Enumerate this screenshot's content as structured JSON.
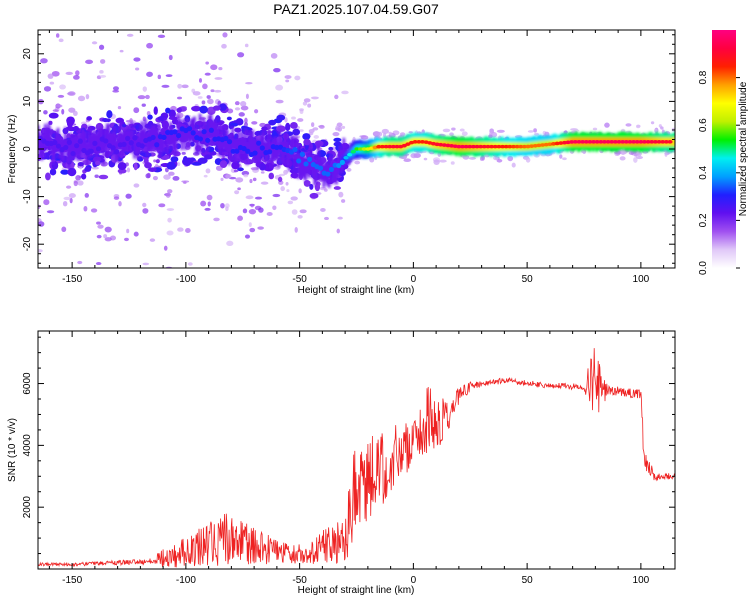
{
  "title": "PAZ1.2025.107.04.59.G07",
  "colors": {
    "snr_line": "#ee2222"
  },
  "chart_data": [
    {
      "type": "heatmap",
      "title": "PAZ1.2025.107.04.59.G07",
      "xlabel": "Height of straight line (km)",
      "ylabel": "Frequency (Hz)",
      "xlim": [
        -165,
        115
      ],
      "ylim": [
        -25,
        25
      ],
      "xticks": [
        -150,
        -100,
        -50,
        0,
        50,
        100
      ],
      "yticks": [
        -20,
        -10,
        0,
        10,
        20
      ],
      "colorbar": {
        "label": "Normalized spectral amplitude",
        "range": [
          0,
          1
        ],
        "ticks": [
          "0.0",
          "0.2",
          "0.4",
          "0.6",
          "0.8"
        ],
        "colormap": [
          "#ffffff",
          "#e0c8f8",
          "#a050f0",
          "#6010f0",
          "#2020ff",
          "#00a0ff",
          "#00f0f0",
          "#00f000",
          "#c0f000",
          "#ffff00",
          "#ffa000",
          "#ff2000",
          "#ff0040",
          "#ff0080"
        ]
      },
      "ridge": {
        "heights": [
          -160,
          -150,
          -140,
          -130,
          -120,
          -110,
          -100,
          -90,
          -80,
          -70,
          -60,
          -50,
          -45,
          -40,
          -35,
          -30,
          -25,
          -20,
          -15,
          -10,
          -5,
          0,
          5,
          10,
          20,
          30,
          40,
          50,
          60,
          70,
          80,
          90,
          100,
          110,
          115
        ],
        "frequency": [
          1,
          0,
          1,
          1,
          2,
          2,
          3,
          3,
          1,
          0,
          0,
          -2,
          -3,
          -4,
          -4,
          -2,
          0,
          0,
          0.5,
          0.5,
          0.5,
          1.5,
          1.5,
          1,
          0.5,
          0.5,
          0.5,
          0.5,
          1,
          1.5,
          1.5,
          1.5,
          1.5,
          1.5,
          1.5
        ],
        "amplitude": [
          0.25,
          0.25,
          0.25,
          0.25,
          0.25,
          0.3,
          0.3,
          0.3,
          0.3,
          0.3,
          0.3,
          0.35,
          0.35,
          0.35,
          0.35,
          0.4,
          0.55,
          0.65,
          0.85,
          0.9,
          0.9,
          0.85,
          0.85,
          0.9,
          0.95,
          0.9,
          0.85,
          0.8,
          0.8,
          0.95,
          0.95,
          0.95,
          0.95,
          0.9,
          0.9
        ]
      }
    },
    {
      "type": "line",
      "xlabel": "Height of straight line (km)",
      "ylabel": "SNR (10 * v/v)",
      "xlim": [
        -165,
        115
      ],
      "ylim": [
        0,
        7700
      ],
      "xticks": [
        -150,
        -100,
        -50,
        0,
        50,
        100
      ],
      "yticks": [
        2000,
        4000,
        6000
      ],
      "series": [
        {
          "x": [
            -165,
            -150,
            -130,
            -115,
            -110,
            -105,
            -100,
            -95,
            -90,
            -85,
            -80,
            -75,
            -70,
            -65,
            -60,
            -55,
            -50,
            -45,
            -40,
            -35,
            -30,
            -28,
            -26,
            -24,
            -22,
            -20,
            -17,
            -15,
            -12,
            -10,
            -8,
            -6,
            -4,
            -2,
            0,
            2,
            4,
            6,
            8,
            10,
            15,
            20,
            25,
            30,
            35,
            40,
            50,
            60,
            70,
            75,
            78,
            80,
            82,
            85,
            90,
            95,
            100,
            101,
            102,
            104,
            106,
            110,
            115
          ],
          "values": [
            150,
            150,
            200,
            250,
            350,
            450,
            550,
            700,
            800,
            900,
            1000,
            850,
            750,
            650,
            600,
            500,
            500,
            550,
            700,
            800,
            900,
            1800,
            2400,
            2700,
            2800,
            3000,
            3200,
            3100,
            3300,
            3400,
            3700,
            3900,
            3800,
            4000,
            4300,
            4200,
            4600,
            4800,
            4800,
            4500,
            5000,
            5600,
            5900,
            6000,
            6050,
            6100,
            6000,
            5950,
            5900,
            5900,
            6000,
            5900,
            5700,
            5800,
            5750,
            5700,
            5650,
            4200,
            3600,
            3300,
            3000,
            3000,
            3000
          ],
          "noise": [
            50,
            50,
            80,
            100,
            300,
            400,
            500,
            600,
            700,
            800,
            900,
            700,
            600,
            500,
            400,
            350,
            350,
            400,
            550,
            700,
            800,
            1400,
            1600,
            1600,
            1500,
            1400,
            1400,
            1300,
            1200,
            1100,
            1000,
            1000,
            900,
            800,
            700,
            700,
            1000,
            1200,
            1300,
            900,
            600,
            300,
            150,
            100,
            100,
            100,
            100,
            100,
            100,
            100,
            900,
            1400,
            900,
            200,
            150,
            150,
            150,
            400,
            400,
            300,
            150,
            100,
            100
          ]
        }
      ]
    }
  ]
}
